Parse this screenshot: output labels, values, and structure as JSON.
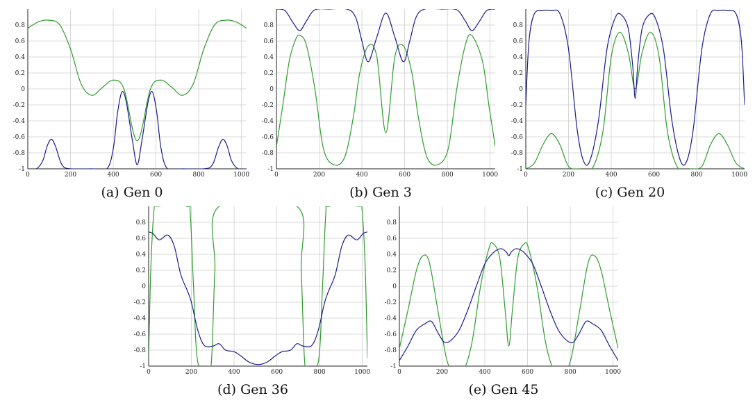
{
  "figure": {
    "captions": [
      "(a) Gen 0",
      "(b) Gen 3",
      "(c) Gen 20",
      "(d) Gen 36",
      "(e) Gen 45"
    ]
  },
  "chart_data": [
    {
      "type": "line",
      "caption": "(a) Gen 0",
      "xlim": [
        0,
        1024
      ],
      "ylim": [
        -1,
        1
      ],
      "xticks": [
        0,
        200,
        400,
        600,
        800,
        1000
      ],
      "yticks": [
        -1,
        -0.8,
        -0.6,
        -0.4,
        -0.2,
        0,
        0.2,
        0.4,
        0.6,
        0.8
      ],
      "ytick_labels": [
        "-1",
        "-0.8",
        "-0.6",
        "-0.4",
        "-0.2",
        "0",
        "0.2",
        "0.4",
        "0.6",
        "0.8"
      ],
      "grid": true,
      "series": [
        {
          "color": "#2e9c2e",
          "x": [
            0,
            50,
            100,
            150,
            200,
            250,
            300,
            350,
            400,
            450,
            512,
            574,
            624,
            674,
            724,
            774,
            824,
            874,
            924,
            974,
            1024
          ],
          "y": [
            0.76,
            0.84,
            0.86,
            0.8,
            0.5,
            0.06,
            -0.08,
            0.02,
            0.11,
            0.0,
            -0.65,
            0.0,
            0.11,
            0.02,
            -0.08,
            0.06,
            0.5,
            0.8,
            0.86,
            0.84,
            0.76
          ]
        },
        {
          "color": "#1a1a8c",
          "x": [
            0,
            40,
            70,
            90,
            110,
            130,
            160,
            200,
            300,
            370,
            400,
            420,
            440,
            460,
            490,
            512,
            534,
            564,
            584,
            604,
            624,
            654,
            724,
            824,
            864,
            894,
            914,
            934,
            954,
            984,
            1024
          ],
          "y": [
            -1,
            -1,
            -0.9,
            -0.72,
            -0.63,
            -0.72,
            -0.95,
            -1,
            -1,
            -1,
            -0.75,
            -0.3,
            -0.04,
            -0.15,
            -0.65,
            -0.95,
            -0.65,
            -0.15,
            -0.04,
            -0.3,
            -0.75,
            -1,
            -1,
            -1,
            -0.95,
            -0.72,
            -0.63,
            -0.72,
            -0.9,
            -1,
            -1
          ]
        }
      ]
    },
    {
      "type": "line",
      "caption": "(b) Gen 3",
      "xlim": [
        0,
        1024
      ],
      "ylim": [
        -1,
        1
      ],
      "xticks": [
        0,
        200,
        400,
        600,
        800,
        1000
      ],
      "yticks": [
        -1,
        -0.8,
        -0.6,
        -0.4,
        -0.2,
        0,
        0.2,
        0.4,
        0.6,
        0.8
      ],
      "ytick_labels": [
        "-1",
        "-0.8",
        "-0.6",
        "-0.4",
        "-0.2",
        "0",
        "0.2",
        "0.4",
        "0.6",
        "0.8"
      ],
      "grid": true,
      "series": [
        {
          "color": "#2e9c2e",
          "x": [
            0,
            30,
            60,
            90,
            110,
            140,
            180,
            220,
            270,
            320,
            360,
            390,
            430,
            470,
            512,
            554,
            594,
            634,
            664,
            704,
            754,
            804,
            844,
            884,
            914,
            964,
            994,
            1024
          ],
          "y": [
            -0.72,
            -0.2,
            0.35,
            0.62,
            0.67,
            0.55,
            0.0,
            -0.75,
            -0.95,
            -0.85,
            -0.35,
            0.2,
            0.54,
            0.4,
            -0.55,
            0.4,
            0.54,
            0.2,
            -0.35,
            -0.85,
            -0.95,
            -0.75,
            0.0,
            0.55,
            0.67,
            0.35,
            -0.2,
            -0.72
          ]
        },
        {
          "color": "#1a1a8c",
          "x": [
            0,
            40,
            80,
            110,
            140,
            180,
            250,
            330,
            370,
            400,
            430,
            470,
            512,
            554,
            594,
            624,
            654,
            694,
            774,
            844,
            884,
            914,
            944,
            984,
            1024
          ],
          "y": [
            1.0,
            0.98,
            0.82,
            0.73,
            0.85,
            0.99,
            1.0,
            1.0,
            0.9,
            0.6,
            0.34,
            0.65,
            0.95,
            0.65,
            0.34,
            0.6,
            0.9,
            1.0,
            1.0,
            0.99,
            0.85,
            0.73,
            0.82,
            0.98,
            1.0
          ]
        }
      ]
    },
    {
      "type": "line",
      "caption": "(c) Gen 20",
      "xlim": [
        0,
        1024
      ],
      "ylim": [
        -1,
        1
      ],
      "xticks": [
        0,
        200,
        400,
        600,
        800,
        1000
      ],
      "yticks": [
        -1,
        -0.8,
        -0.6,
        -0.4,
        -0.2,
        0,
        0.2,
        0.4,
        0.6,
        0.8
      ],
      "ytick_labels": [
        "-1",
        "-0.8",
        "-0.6",
        "-0.4",
        "-0.2",
        "0",
        "0.2",
        "0.4",
        "0.6",
        "0.8"
      ],
      "grid": true,
      "series": [
        {
          "color": "#2e9c2e",
          "x": [
            0,
            40,
            80,
            120,
            160,
            200,
            250,
            310,
            360,
            400,
            440,
            480,
            512,
            544,
            584,
            624,
            664,
            714,
            774,
            824,
            864,
            904,
            944,
            984,
            1024
          ],
          "y": [
            -1,
            -0.93,
            -0.7,
            -0.56,
            -0.7,
            -0.97,
            -1,
            -1,
            -0.55,
            0.4,
            0.71,
            0.45,
            0.0,
            0.45,
            0.71,
            0.4,
            -0.55,
            -1,
            -1,
            -0.97,
            -0.7,
            -0.56,
            -0.7,
            -0.93,
            -1
          ]
        },
        {
          "color": "#1a1a8c",
          "x": [
            0,
            15,
            40,
            80,
            120,
            160,
            200,
            240,
            270,
            300,
            340,
            380,
            420,
            450,
            480,
            500,
            512,
            524,
            544,
            574,
            604,
            644,
            684,
            724,
            754,
            784,
            824,
            864,
            904,
            944,
            984,
            1009,
            1024
          ],
          "y": [
            -0.2,
            0.6,
            0.94,
            0.98,
            0.98,
            0.94,
            0.5,
            -0.5,
            -0.9,
            -0.9,
            -0.4,
            0.5,
            0.9,
            0.92,
            0.75,
            0.3,
            -0.12,
            0.3,
            0.75,
            0.92,
            0.9,
            0.5,
            -0.4,
            -0.9,
            -0.9,
            -0.5,
            0.5,
            0.94,
            0.98,
            0.98,
            0.94,
            0.6,
            -0.2
          ]
        }
      ]
    },
    {
      "type": "line",
      "caption": "(d) Gen 36",
      "xlim": [
        0,
        1024
      ],
      "ylim": [
        -1,
        1
      ],
      "xticks": [
        0,
        200,
        400,
        600,
        800,
        1000
      ],
      "yticks": [
        -1,
        -0.8,
        -0.6,
        -0.4,
        -0.2,
        0,
        0.2,
        0.4,
        0.6,
        0.8
      ],
      "ytick_labels": [
        "-1",
        "-0.8",
        "-0.6",
        "-0.4",
        "-0.2",
        "0",
        "0.2",
        "0.4",
        "0.6",
        "0.8"
      ],
      "grid": true,
      "series": [
        {
          "color": "#2e9c2e",
          "x": [
            0,
            10,
            25,
            40,
            180,
            195,
            210,
            230,
            280,
            295,
            310,
            330,
            694,
            714,
            729,
            744,
            794,
            814,
            829,
            844,
            984,
            999,
            1014,
            1024
          ],
          "y": [
            -0.9,
            0.2,
            0.95,
            1.0,
            1.0,
            0.9,
            0.0,
            -0.95,
            -1.0,
            -0.9,
            0.2,
            1.0,
            1.0,
            0.2,
            -0.9,
            -1.0,
            -0.95,
            0.0,
            0.9,
            1.0,
            1.0,
            0.95,
            0.2,
            -0.9
          ]
        },
        {
          "color": "#1a1a8c",
          "x": [
            0,
            20,
            50,
            90,
            120,
            150,
            180,
            200,
            230,
            260,
            300,
            330,
            360,
            400,
            430,
            470,
            512,
            554,
            594,
            624,
            664,
            694,
            724,
            764,
            794,
            824,
            844,
            874,
            904,
            934,
            974,
            1004,
            1024
          ],
          "y": [
            0.68,
            0.66,
            0.58,
            0.64,
            0.5,
            0.15,
            -0.05,
            -0.2,
            -0.55,
            -0.74,
            -0.75,
            -0.72,
            -0.8,
            -0.82,
            -0.87,
            -0.95,
            -0.98,
            -0.95,
            -0.87,
            -0.82,
            -0.8,
            -0.72,
            -0.75,
            -0.74,
            -0.55,
            -0.2,
            -0.05,
            0.15,
            0.5,
            0.64,
            0.58,
            0.66,
            0.68
          ]
        }
      ]
    },
    {
      "type": "line",
      "caption": "(e) Gen 45",
      "xlim": [
        0,
        1024
      ],
      "ylim": [
        -1,
        1
      ],
      "xticks": [
        0,
        200,
        400,
        600,
        800,
        1000
      ],
      "yticks": [
        -1,
        -0.8,
        -0.6,
        -0.4,
        -0.2,
        0,
        0.2,
        0.4,
        0.6,
        0.8
      ],
      "ytick_labels": [
        "-1",
        "-0.8",
        "-0.6",
        "-0.4",
        "-0.2",
        "0",
        "0.2",
        "0.4",
        "0.6",
        "0.8"
      ],
      "grid": true,
      "series": [
        {
          "color": "#2e9c2e",
          "x": [
            0,
            40,
            80,
            110,
            140,
            180,
            220,
            250,
            300,
            340,
            380,
            420,
            440,
            470,
            495,
            512,
            529,
            554,
            584,
            604,
            644,
            684,
            724,
            774,
            804,
            844,
            884,
            914,
            944,
            984,
            1024
          ],
          "y": [
            -0.78,
            -0.3,
            0.2,
            0.38,
            0.3,
            -0.3,
            -0.9,
            -1.05,
            -1.05,
            -0.7,
            0.0,
            0.48,
            0.53,
            0.35,
            -0.3,
            -0.75,
            -0.3,
            0.35,
            0.53,
            0.48,
            0.0,
            -0.7,
            -1.05,
            -1.05,
            -0.9,
            -0.3,
            0.3,
            0.38,
            0.2,
            -0.3,
            -0.78
          ]
        },
        {
          "color": "#1a1a8c",
          "x": [
            0,
            40,
            80,
            120,
            150,
            180,
            210,
            240,
            280,
            320,
            360,
            400,
            440,
            475,
            500,
            512,
            524,
            549,
            584,
            624,
            664,
            704,
            744,
            784,
            814,
            844,
            874,
            904,
            944,
            984,
            1024
          ],
          "y": [
            -0.93,
            -0.75,
            -0.55,
            -0.47,
            -0.44,
            -0.58,
            -0.7,
            -0.68,
            -0.55,
            -0.3,
            0.0,
            0.28,
            0.42,
            0.47,
            0.43,
            0.38,
            0.43,
            0.47,
            0.42,
            0.28,
            0.0,
            -0.3,
            -0.55,
            -0.68,
            -0.7,
            -0.58,
            -0.44,
            -0.47,
            -0.55,
            -0.75,
            -0.93
          ]
        }
      ]
    }
  ]
}
